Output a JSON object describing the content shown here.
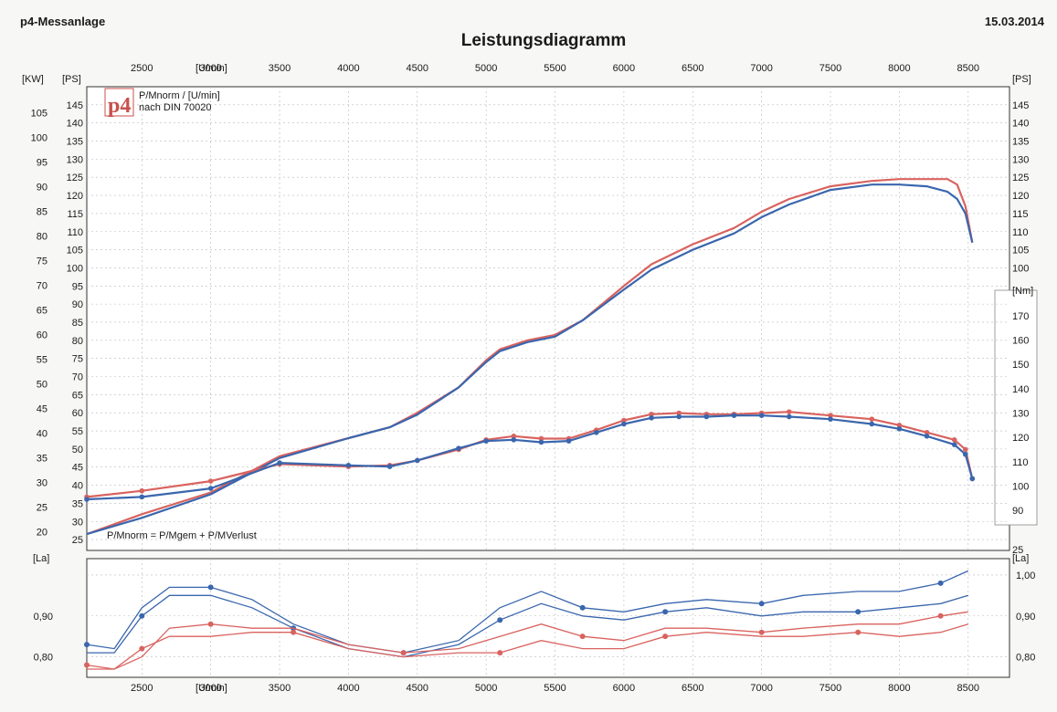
{
  "header": {
    "left": "p4-Messanlage",
    "date": "15.03.2014",
    "title": "Leistungsdiagramm"
  },
  "colors": {
    "red": "#d9635f",
    "blue": "#3a66ad",
    "logo": "#c8514c"
  },
  "legend": {
    "logo_text": "p4",
    "line1": "P/Mnorm / [U/min]",
    "line2": "nach DIN 70020",
    "formula": "P/Mnorm = P/Mgem + P/MVerlust"
  },
  "labels": {
    "kw": "[KW]",
    "ps": "[PS]",
    "ps_right": "[PS]",
    "nm": "[Nm]",
    "la": "[La]",
    "la_right": "[La]",
    "rpm_top": "[U/min]",
    "rpm_bottom": "[U/min]",
    "right_25": "25"
  },
  "chart_data": [
    {
      "type": "line",
      "title": "Leistungsdiagramm",
      "xlabel": "[U/min]",
      "xlim": [
        2100,
        8800
      ],
      "x_ticks": [
        2500,
        3000,
        3500,
        4000,
        4500,
        5000,
        5500,
        6000,
        6500,
        7000,
        7500,
        8000,
        8500
      ],
      "kw_ticks": [
        20,
        25,
        30,
        35,
        40,
        45,
        50,
        55,
        60,
        65,
        70,
        75,
        80,
        85,
        90,
        95,
        100,
        105
      ],
      "ps_ticks": [
        25,
        30,
        35,
        40,
        45,
        50,
        55,
        60,
        65,
        70,
        75,
        80,
        85,
        90,
        95,
        100,
        105,
        110,
        115,
        120,
        125,
        130,
        135,
        140,
        145
      ],
      "nm_ticks": [
        90,
        100,
        110,
        120,
        130,
        140,
        150,
        160,
        170
      ],
      "ylim_ps": [
        22,
        150
      ],
      "ylim_nm": [
        84,
        176
      ],
      "grid": true,
      "series": [
        {
          "color": "red",
          "unit": "PS",
          "x": [
            2100,
            2500,
            3000,
            3500,
            4000,
            4300,
            4500,
            4800,
            5000,
            5100,
            5300,
            5500,
            5700,
            6000,
            6200,
            6500,
            6800,
            7000,
            7200,
            7500,
            7800,
            8000,
            8200,
            8350,
            8420,
            8480,
            8530
          ],
          "y": [
            26.5,
            32,
            38,
            48,
            53,
            56,
            60,
            67,
            74.5,
            77.5,
            80,
            81.5,
            85.5,
            95,
            101,
            106.5,
            111,
            115.5,
            119,
            122.5,
            124,
            124.5,
            124.5,
            124.5,
            123,
            117,
            107
          ]
        },
        {
          "color": "blue",
          "unit": "PS",
          "x": [
            2100,
            2500,
            3000,
            3500,
            4000,
            4300,
            4500,
            4800,
            5000,
            5100,
            5300,
            5500,
            5700,
            6000,
            6200,
            6500,
            6800,
            7000,
            7200,
            7500,
            7800,
            8000,
            8200,
            8350,
            8420,
            8480,
            8530
          ],
          "y": [
            26.5,
            31,
            37.5,
            47.5,
            53,
            56,
            59.5,
            67,
            74,
            77,
            79.5,
            81,
            85.5,
            94,
            99.5,
            105,
            109.5,
            114,
            117.5,
            121.5,
            123,
            123,
            122.5,
            121,
            119,
            115,
            107
          ]
        },
        {
          "color": "red",
          "unit": "Nm",
          "markers": true,
          "x": [
            2100,
            2500,
            3000,
            3500,
            4000,
            4300,
            4500,
            4800,
            5000,
            5200,
            5400,
            5600,
            5800,
            6000,
            6200,
            6400,
            6600,
            6800,
            7000,
            7200,
            7500,
            7800,
            8000,
            8200,
            8400,
            8480,
            8530
          ],
          "y": [
            95.5,
            98,
            102,
            109,
            108,
            108.5,
            110.5,
            115,
            119,
            120.5,
            119.5,
            119.5,
            123,
            127,
            129.5,
            130,
            129.5,
            129.5,
            130,
            130.5,
            129,
            127.5,
            125,
            122,
            119,
            115,
            103
          ]
        },
        {
          "color": "blue",
          "unit": "Nm",
          "markers": true,
          "x": [
            2100,
            2500,
            3000,
            3500,
            4000,
            4300,
            4500,
            4800,
            5000,
            5200,
            5400,
            5600,
            5800,
            6000,
            6200,
            6400,
            6600,
            6800,
            7000,
            7200,
            7500,
            7800,
            8000,
            8200,
            8400,
            8480,
            8530
          ],
          "y": [
            94.5,
            95.5,
            99,
            109.5,
            108.5,
            108,
            110.5,
            115.5,
            118.5,
            119,
            118,
            118.5,
            122,
            125.5,
            128,
            128.5,
            128.5,
            129,
            129,
            128.5,
            127.5,
            125.5,
            123.5,
            120.5,
            117,
            113,
            103
          ]
        }
      ]
    },
    {
      "type": "line",
      "ylabel": "[La]",
      "xlabel": "[U/min]",
      "xlim": [
        2100,
        8800
      ],
      "ylim": [
        0.75,
        1.04
      ],
      "y_ticks_left": [
        "0,80",
        "0,90"
      ],
      "y_ticks_right": [
        "0,80",
        "0,90",
        "1,00"
      ],
      "grid": true,
      "series": [
        {
          "color": "blue",
          "x": [
            2100,
            2300,
            2500,
            2700,
            3000,
            3300,
            3600,
            4000,
            4400,
            4800,
            5100,
            5400,
            5700,
            6000,
            6300,
            6600,
            7000,
            7300,
            7700,
            8000,
            8300,
            8500
          ],
          "y": [
            0.83,
            0.82,
            0.92,
            0.97,
            0.97,
            0.94,
            0.88,
            0.83,
            0.81,
            0.84,
            0.92,
            0.96,
            0.92,
            0.91,
            0.93,
            0.94,
            0.93,
            0.95,
            0.96,
            0.96,
            0.98,
            1.01
          ]
        },
        {
          "color": "blue",
          "x": [
            2100,
            2300,
            2500,
            2700,
            3000,
            3300,
            3600,
            4000,
            4400,
            4800,
            5100,
            5400,
            5700,
            6000,
            6300,
            6600,
            7000,
            7300,
            7700,
            8000,
            8300,
            8500
          ],
          "y": [
            0.81,
            0.81,
            0.9,
            0.95,
            0.95,
            0.92,
            0.87,
            0.82,
            0.8,
            0.83,
            0.89,
            0.93,
            0.9,
            0.89,
            0.91,
            0.92,
            0.9,
            0.91,
            0.91,
            0.92,
            0.93,
            0.95
          ]
        },
        {
          "color": "red",
          "x": [
            2100,
            2300,
            2500,
            2700,
            3000,
            3300,
            3600,
            4000,
            4400,
            4800,
            5100,
            5400,
            5700,
            6000,
            6300,
            6600,
            7000,
            7300,
            7700,
            8000,
            8300,
            8500
          ],
          "y": [
            0.78,
            0.77,
            0.8,
            0.87,
            0.88,
            0.87,
            0.87,
            0.83,
            0.81,
            0.82,
            0.85,
            0.88,
            0.85,
            0.84,
            0.87,
            0.87,
            0.86,
            0.87,
            0.88,
            0.88,
            0.9,
            0.91
          ]
        },
        {
          "color": "red",
          "x": [
            2100,
            2300,
            2500,
            2700,
            3000,
            3300,
            3600,
            4000,
            4400,
            4800,
            5100,
            5400,
            5700,
            6000,
            6300,
            6600,
            7000,
            7300,
            7700,
            8000,
            8300,
            8500
          ],
          "y": [
            0.77,
            0.77,
            0.82,
            0.85,
            0.85,
            0.86,
            0.86,
            0.82,
            0.8,
            0.81,
            0.81,
            0.84,
            0.82,
            0.82,
            0.85,
            0.86,
            0.85,
            0.85,
            0.86,
            0.85,
            0.86,
            0.88
          ]
        }
      ]
    }
  ]
}
